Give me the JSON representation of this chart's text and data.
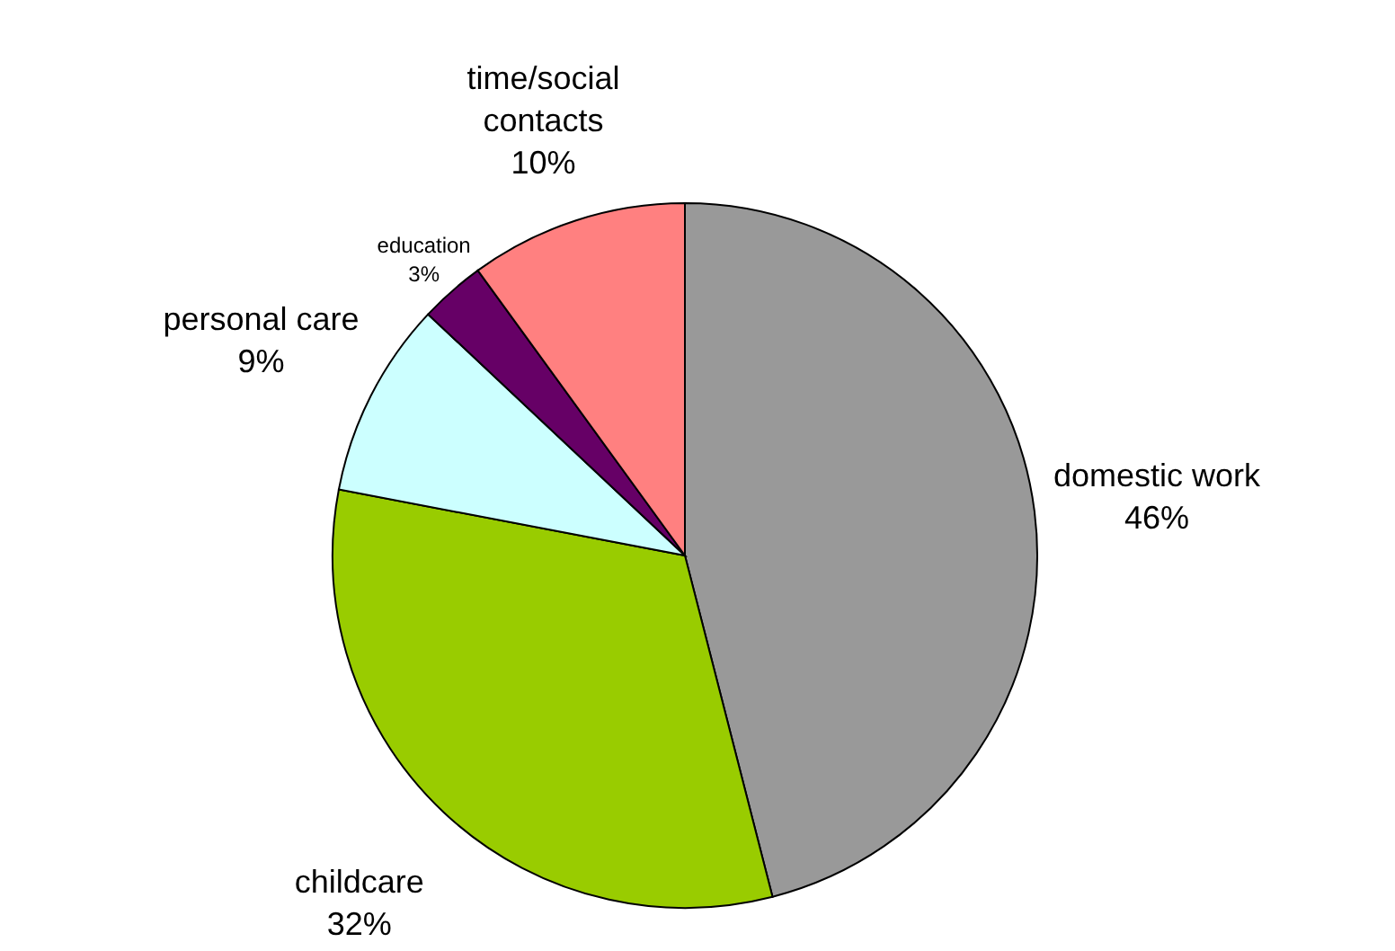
{
  "chart_data": {
    "type": "pie",
    "categories": [
      "domestic work",
      "childcare",
      "personal care",
      "education",
      "time/social contacts"
    ],
    "values": [
      46,
      32,
      9,
      3,
      10
    ],
    "colors": [
      "#999999",
      "#99cc00",
      "#ccffff",
      "#660066",
      "#ff8080"
    ],
    "value_labels": [
      "46%",
      "32%",
      "9%",
      "3%",
      "10%"
    ]
  }
}
